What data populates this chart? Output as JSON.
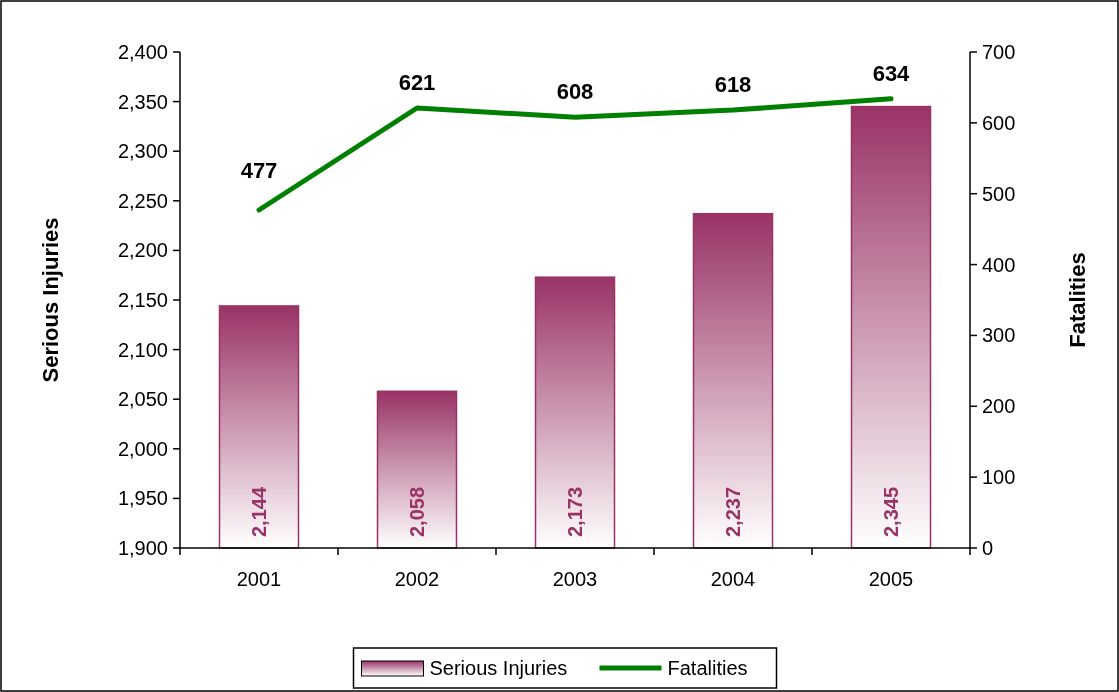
{
  "chart_data": {
    "type": "bar",
    "categories": [
      "2001",
      "2002",
      "2003",
      "2004",
      "2005"
    ],
    "series": [
      {
        "name": "Serious Injuries",
        "color": "#993366",
        "values": [
          2144,
          2058,
          2173,
          2237,
          2345
        ],
        "value_labels": [
          "2,144",
          "2,058",
          "2,173",
          "2,237",
          "2,345"
        ]
      },
      {
        "name": "Fatalities",
        "type": "line",
        "axis": "y2",
        "color": "#008000",
        "values": [
          477,
          621,
          608,
          618,
          634
        ],
        "value_labels": [
          "477",
          "621",
          "608",
          "618",
          "634"
        ]
      }
    ],
    "ylabel": "Serious Injuries",
    "y2label": "Fatalities",
    "ylim": [
      1900,
      2400
    ],
    "yticks": [
      {
        "value": 1900,
        "label": "1,900"
      },
      {
        "value": 1950,
        "label": "1,950"
      },
      {
        "value": 2000,
        "label": "2,000"
      },
      {
        "value": 2050,
        "label": "2,050"
      },
      {
        "value": 2100,
        "label": "2,100"
      },
      {
        "value": 2150,
        "label": "2,150"
      },
      {
        "value": 2200,
        "label": "2,200"
      },
      {
        "value": 2250,
        "label": "2,250"
      },
      {
        "value": 2300,
        "label": "2,300"
      },
      {
        "value": 2350,
        "label": "2,350"
      },
      {
        "value": 2400,
        "label": "2,400"
      }
    ],
    "y2lim": [
      0,
      700
    ],
    "y2ticks": [
      0,
      100,
      200,
      300,
      400,
      500,
      600,
      700
    ],
    "legend": "bottom",
    "marker": "none"
  }
}
